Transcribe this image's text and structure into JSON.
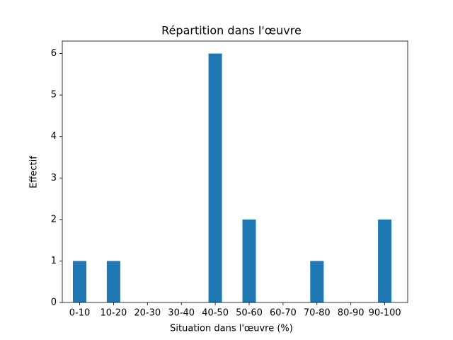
{
  "chart_data": {
    "type": "bar",
    "title": "Répartition dans l'œuvre",
    "x_label": "Situation dans l'œuvre (%)",
    "y_label": "Effectif",
    "categories": [
      "0-10",
      "10-20",
      "20-30",
      "30-40",
      "40-50",
      "50-60",
      "60-70",
      "70-80",
      "80-90",
      "90-100"
    ],
    "values": [
      1,
      1,
      0,
      0,
      6,
      2,
      0,
      1,
      0,
      2
    ],
    "color": "#1f77b4",
    "ylim": [
      0,
      6.3
    ],
    "yticks": [
      0,
      1,
      2,
      3,
      4,
      5,
      6
    ],
    "grid": false
  }
}
